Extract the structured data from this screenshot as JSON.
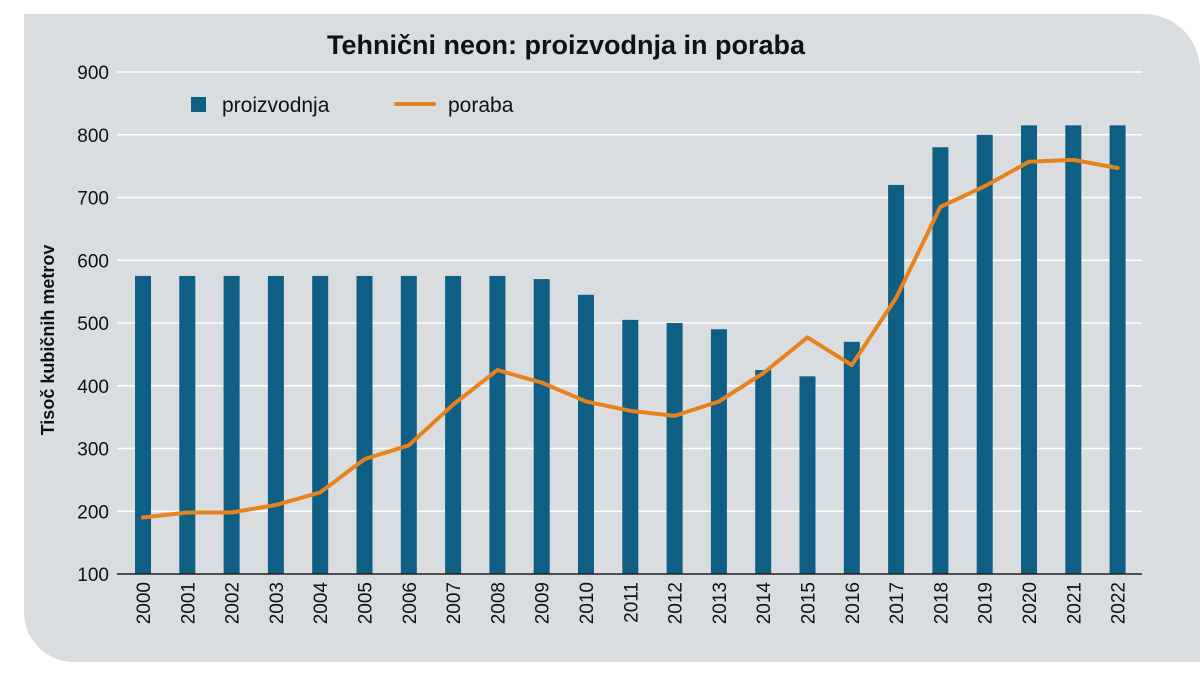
{
  "chart_data": {
    "type": "bar",
    "title": "Tehnični neon: proizvodnja in poraba",
    "xlabel": "",
    "ylabel": "Tisoč kubičnih metrov",
    "ylim": [
      100,
      900
    ],
    "yticks": [
      "100",
      "200",
      "300",
      "400",
      "500",
      "600",
      "700",
      "800",
      "900"
    ],
    "grid": true,
    "legend_position": "top-left",
    "categories": [
      "2000",
      "2001",
      "2002",
      "2003",
      "2004",
      "2005",
      "2006",
      "2007",
      "2008",
      "2009",
      "2010",
      "2011",
      "2012",
      "2013",
      "2014",
      "2015",
      "2016",
      "2017",
      "2018",
      "2019",
      "2020",
      "2021",
      "2022"
    ],
    "series": [
      {
        "name": "proizvodnja",
        "type": "bar",
        "color": "#0e5f83",
        "values": [
          575,
          575,
          575,
          575,
          575,
          575,
          575,
          575,
          575,
          570,
          545,
          505,
          500,
          490,
          425,
          415,
          470,
          720,
          780,
          800,
          815,
          815,
          815
        ]
      },
      {
        "name": "poraba",
        "type": "line",
        "color": "#e8821e",
        "values": [
          190,
          198,
          198,
          210,
          230,
          283,
          305,
          370,
          425,
          405,
          375,
          360,
          352,
          375,
          420,
          477,
          433,
          540,
          685,
          718,
          757,
          760,
          747
        ]
      }
    ]
  },
  "colors": {
    "panel_background": "#d9dde0",
    "gridline": "#ffffff",
    "axis": "#222222"
  }
}
